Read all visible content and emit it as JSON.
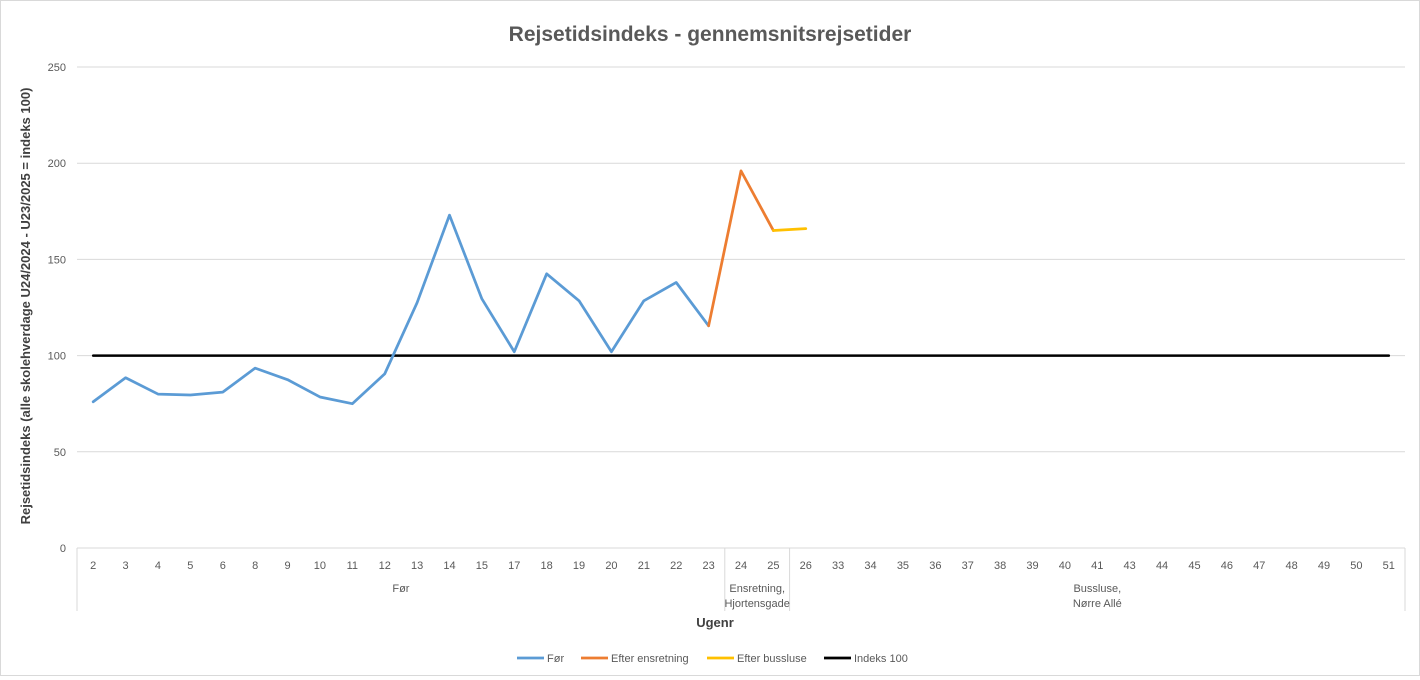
{
  "chart_data": {
    "type": "line",
    "title": "Rejsetidsindeks - gennemsnitsrejsetider",
    "xlabel": "Ugenr",
    "ylabel": "Rejsetidsindeks (alle skolehverdage U24/2024 - U23/2025 = indeks 100)",
    "ylim": [
      0,
      250
    ],
    "yticks": [
      0,
      50,
      100,
      150,
      200,
      250
    ],
    "grid": true,
    "legend_position": "bottom",
    "categories": [
      "2",
      "3",
      "4",
      "5",
      "6",
      "8",
      "9",
      "10",
      "11",
      "12",
      "13",
      "14",
      "15",
      "17",
      "18",
      "19",
      "20",
      "21",
      "22",
      "23",
      "24",
      "25",
      "26",
      "33",
      "34",
      "35",
      "36",
      "37",
      "38",
      "39",
      "40",
      "41",
      "43",
      "44",
      "45",
      "46",
      "47",
      "48",
      "49",
      "50",
      "51"
    ],
    "groups": [
      {
        "label": "Før",
        "start": 0,
        "end": 19
      },
      {
        "label": "Ensretning,\nHjortensgade",
        "start": 20,
        "end": 21
      },
      {
        "label": "Bussluse,\nNørre Allé",
        "start": 22,
        "end": 40
      }
    ],
    "series": [
      {
        "name": "Før",
        "color": "#5b9bd5",
        "values": [
          76,
          88.5,
          80,
          79.5,
          81,
          93.5,
          87.5,
          78.5,
          75,
          90.5,
          127.5,
          173,
          129.5,
          102,
          142.5,
          128.5,
          102,
          128.5,
          138,
          115.5,
          null,
          null,
          null,
          null,
          null,
          null,
          null,
          null,
          null,
          null,
          null,
          null,
          null,
          null,
          null,
          null,
          null,
          null,
          null,
          null,
          null
        ]
      },
      {
        "name": "Efter ensretning",
        "color": "#ed7d31",
        "values": [
          null,
          null,
          null,
          null,
          null,
          null,
          null,
          null,
          null,
          null,
          null,
          null,
          null,
          null,
          null,
          null,
          null,
          null,
          null,
          115.5,
          196,
          165,
          null,
          null,
          null,
          null,
          null,
          null,
          null,
          null,
          null,
          null,
          null,
          null,
          null,
          null,
          null,
          null,
          null,
          null,
          null
        ]
      },
      {
        "name": "Efter bussluse",
        "color": "#ffc000",
        "values": [
          null,
          null,
          null,
          null,
          null,
          null,
          null,
          null,
          null,
          null,
          null,
          null,
          null,
          null,
          null,
          null,
          null,
          null,
          null,
          null,
          null,
          165,
          166,
          null,
          null,
          null,
          null,
          null,
          null,
          null,
          null,
          null,
          null,
          null,
          null,
          null,
          null,
          null,
          null,
          null,
          null
        ]
      },
      {
        "name": "Indeks 100",
        "color": "#000000",
        "values": [
          100,
          100,
          100,
          100,
          100,
          100,
          100,
          100,
          100,
          100,
          100,
          100,
          100,
          100,
          100,
          100,
          100,
          100,
          100,
          100,
          100,
          100,
          100,
          100,
          100,
          100,
          100,
          100,
          100,
          100,
          100,
          100,
          100,
          100,
          100,
          100,
          100,
          100,
          100,
          100,
          100
        ]
      }
    ]
  }
}
